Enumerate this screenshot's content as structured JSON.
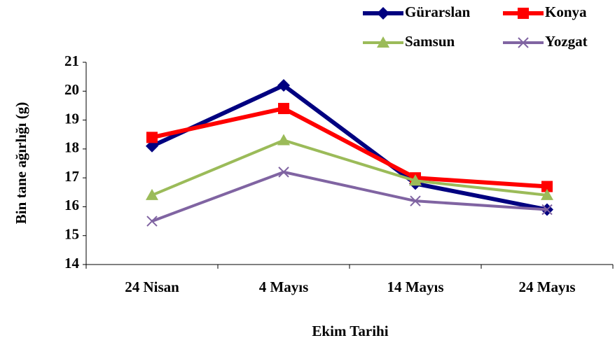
{
  "chart_data": {
    "type": "line",
    "x_label": "Ekim Tarihi",
    "y_label": "Bin tane ağırlığı (g)",
    "categories": [
      "24 Nisan",
      "4 Mayıs",
      "14 Mayıs",
      "24 Mayıs"
    ],
    "series": [
      {
        "name": "Gürarslan",
        "color": "#000080",
        "marker": "diamond",
        "values": [
          18.1,
          20.2,
          16.8,
          15.9
        ]
      },
      {
        "name": "Konya",
        "color": "#ff0000",
        "marker": "square",
        "values": [
          18.4,
          19.4,
          17.0,
          16.7
        ]
      },
      {
        "name": "Samsun",
        "color": "#9bbb59",
        "marker": "triangle",
        "values": [
          16.4,
          18.3,
          16.9,
          16.4
        ]
      },
      {
        "name": "Yozgat",
        "color": "#8064a2",
        "marker": "x",
        "values": [
          15.5,
          17.2,
          16.2,
          15.9
        ]
      }
    ],
    "ylim": [
      14,
      21
    ],
    "yticks": [
      14,
      15,
      16,
      17,
      18,
      19,
      20,
      21
    ],
    "grid": false,
    "legend": "top-right"
  }
}
